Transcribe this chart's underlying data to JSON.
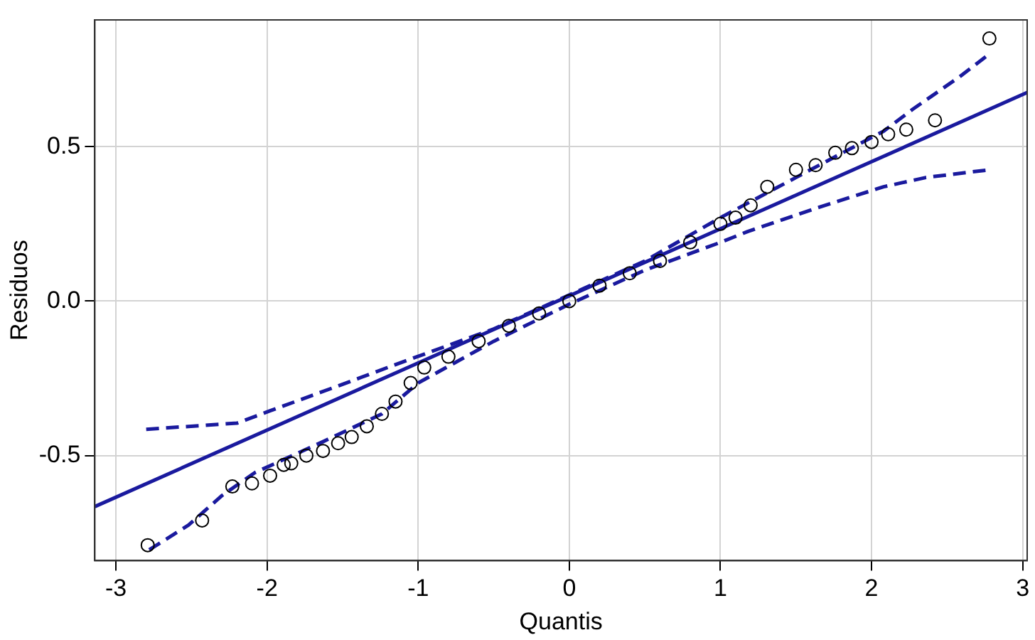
{
  "chart_data": {
    "type": "scatter",
    "xlabel": "Quantis",
    "ylabel": "Residuos",
    "xlim": [
      -3.14,
      3.03
    ],
    "ylim": [
      -0.84,
      0.91
    ],
    "xticks": [
      -3,
      -2,
      -1,
      0,
      1,
      2,
      3
    ],
    "yticks": [
      {
        "value": -0.5,
        "label": "-0.5"
      },
      {
        "value": 0,
        "label": "0.0"
      },
      {
        "value": 0.5,
        "label": "0.5"
      }
    ],
    "grid": true,
    "legend": false,
    "series": [
      {
        "marker": "circle",
        "color": "#000000",
        "x": [
          -2.79,
          -2.43,
          -2.23,
          -2.1,
          -1.98,
          -1.89,
          -1.84,
          -1.74,
          -1.63,
          -1.53,
          -1.44,
          -1.34,
          -1.24,
          -1.15,
          -1.05,
          -0.96,
          -0.8,
          -0.6,
          -0.4,
          -0.2,
          0,
          0.2,
          0.4,
          0.6,
          0.8,
          1,
          1.1,
          1.2,
          1.31,
          1.5,
          1.63,
          1.76,
          1.87,
          2,
          2.11,
          2.23,
          2.42,
          2.78
        ],
        "values": [
          -0.79,
          -0.71,
          -0.6,
          -0.59,
          -0.565,
          -0.53,
          -0.525,
          -0.5,
          -0.485,
          -0.46,
          -0.44,
          -0.405,
          -0.365,
          -0.325,
          -0.265,
          -0.215,
          -0.18,
          -0.13,
          -0.08,
          -0.04,
          0,
          0.05,
          0.09,
          0.13,
          0.19,
          0.25,
          0.27,
          0.31,
          0.37,
          0.425,
          0.44,
          0.48,
          0.495,
          0.515,
          0.54,
          0.555,
          0.585,
          0.85
        ]
      },
      {
        "type": "line",
        "marker": "none",
        "line_style": "solid",
        "color": "#1a1a9e",
        "x": [
          -3.14,
          3.03
        ],
        "values": [
          -0.665,
          0.675
        ]
      },
      {
        "type": "line",
        "marker": "none",
        "line_style": "dashed",
        "color": "#1a1a9e",
        "x": [
          -2.8,
          -2.2,
          -1.98,
          -1.56,
          -1.12,
          -0.5,
          0,
          0.5,
          1,
          1.5,
          2.08,
          2.27,
          2.58,
          2.78
        ],
        "values": [
          -0.415,
          -0.395,
          -0.355,
          -0.28,
          -0.2,
          -0.09,
          0.02,
          0.13,
          0.27,
          0.4,
          0.55,
          0.62,
          0.725,
          0.8
        ]
      },
      {
        "type": "line",
        "marker": "none",
        "line_style": "dashed",
        "color": "#1a1a9e",
        "x": [
          -2.78,
          -2.52,
          -2.3,
          -2.08,
          -1.63,
          -1.24,
          -1,
          -0.5,
          0,
          0.5,
          1,
          1.18,
          1.63,
          2.08,
          2.36,
          2.78
        ],
        "values": [
          -0.805,
          -0.725,
          -0.63,
          -0.555,
          -0.455,
          -0.365,
          -0.265,
          -0.13,
          -0.01,
          0.1,
          0.19,
          0.225,
          0.3,
          0.37,
          0.4,
          0.425
        ]
      }
    ]
  }
}
